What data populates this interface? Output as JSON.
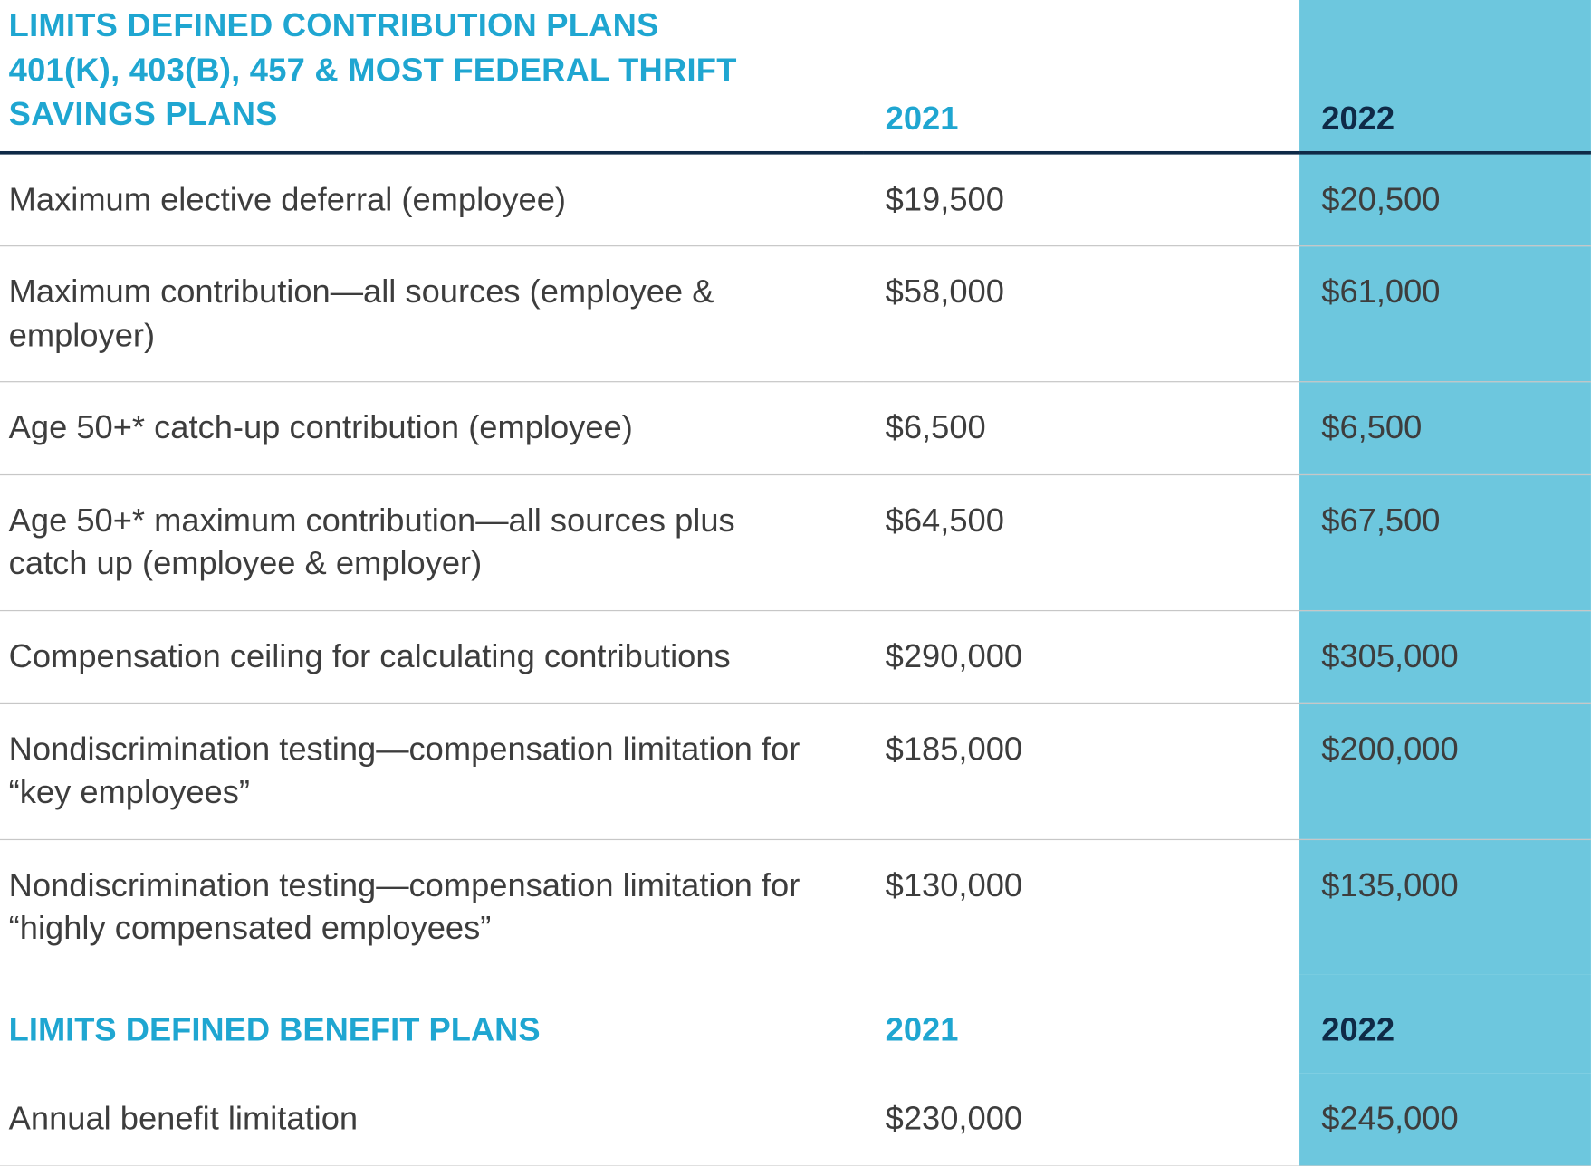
{
  "colors": {
    "accent": "#1fa6d1",
    "dark": "#0f2a47",
    "highlight_bg": "#6dc7de",
    "text": "#3d3d3d",
    "rule": "#c7c7c7",
    "hr": "#0f2a47"
  },
  "columns": {
    "year1": "2021",
    "year2": "2022"
  },
  "section1": {
    "title_line1": "LIMITS DEFINED CONTRIBUTION PLANS",
    "title_line2": "401(K), 403(B), 457 & MOST FEDERAL THRIFT SAVINGS PLANS",
    "rows": [
      {
        "label": "Maximum elective deferral (employee)",
        "y1": "$19,500",
        "y2": "$20,500"
      },
      {
        "label": "Maximum contribution—all sources (employee & employer)",
        "y1": "$58,000",
        "y2": "$61,000"
      },
      {
        "label": "Age 50+* catch-up contribution (employee)",
        "y1": "$6,500",
        "y2": "$6,500"
      },
      {
        "label": "Age 50+* maximum contribution—all sources plus catch up (employee & employer)",
        "y1": "$64,500",
        "y2": "$67,500"
      },
      {
        "label": "Compensation ceiling for calculating contributions",
        "y1": "$290,000",
        "y2": "$305,000"
      },
      {
        "label": "Nondiscrimination testing—compensation limitation for “key employees”",
        "y1": "$185,000",
        "y2": "$200,000"
      },
      {
        "label": "Nondiscrimination testing—compensation limitation for “highly compensated employees”",
        "y1": "$130,000",
        "y2": "$135,000"
      }
    ]
  },
  "section2": {
    "title": "LIMITS DEFINED BENEFIT PLANS",
    "rows": [
      {
        "label": "Annual benefit limitation",
        "y1": "$230,000",
        "y2": "$245,000"
      }
    ]
  }
}
